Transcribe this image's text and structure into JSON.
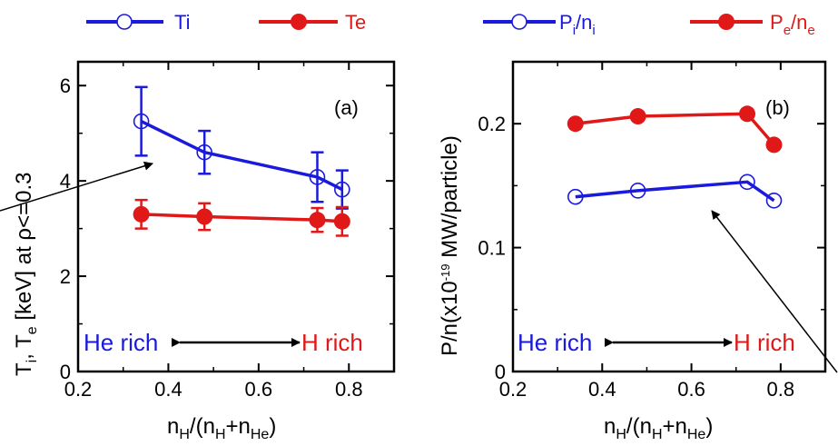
{
  "colors": {
    "blue": "#1a1adc",
    "red": "#e01818",
    "black": "#000000"
  },
  "legend": {
    "ti": "Ti",
    "te": "Te",
    "pi_main": "P",
    "pi_sub": "i",
    "pi_slash": "/n",
    "pi_sub2": "i",
    "pe_main": "P",
    "pe_sub": "e",
    "pe_slash": "/n",
    "pe_sub2": "e"
  },
  "chart_data": [
    {
      "type": "line",
      "panel_label": "(a)",
      "ylabel": {
        "p1": "T",
        "s1": "i",
        "p2": ", T",
        "s2": "e",
        "p3": " [keV] at  ",
        "rho": "ρ",
        "p4": "<=0.3"
      },
      "xlabel": {
        "p1": "n",
        "s1": "H",
        "p2": "/(n",
        "s2": "H",
        "p3": "+n",
        "s3": "He",
        "p4": ")"
      },
      "xlim": [
        0.2,
        0.9
      ],
      "ylim": [
        0,
        6.5
      ],
      "xticks": [
        "0.2",
        "0.4",
        "0.6",
        "0.8"
      ],
      "yticks": [
        "0",
        "2",
        "4",
        "6"
      ],
      "series": [
        {
          "name": "Ti",
          "color": "blue",
          "marker": "open-circle",
          "x": [
            0.34,
            0.48,
            0.73,
            0.785
          ],
          "y": [
            5.25,
            4.6,
            4.08,
            3.82
          ],
          "err": [
            0.72,
            0.45,
            0.52,
            0.4
          ]
        },
        {
          "name": "Te",
          "color": "red",
          "marker": "filled-circle",
          "x": [
            0.34,
            0.48,
            0.73,
            0.785
          ],
          "y": [
            3.3,
            3.25,
            3.18,
            3.15
          ],
          "err": [
            0.3,
            0.28,
            0.25,
            0.3
          ]
        }
      ],
      "annotations": {
        "left": "He rich",
        "right": "H rich"
      }
    },
    {
      "type": "line",
      "panel_label": "(b)",
      "ylabel": {
        "p1": "P/n(x10",
        "sup": "-19",
        "p2": " MW/particle)"
      },
      "xlabel": {
        "p1": "n",
        "s1": "H",
        "p2": "/(n",
        "s2": "H",
        "p3": "+n",
        "s3": "He",
        "p4": ")"
      },
      "xlim": [
        0.2,
        0.9
      ],
      "ylim": [
        0,
        0.25
      ],
      "xticks": [
        "0.2",
        "0.4",
        "0.6",
        "0.8"
      ],
      "yticks": [
        "0",
        "0.1",
        "0.2"
      ],
      "series": [
        {
          "name": "Pi/ni",
          "color": "blue",
          "marker": "open-circle",
          "x": [
            0.34,
            0.48,
            0.725,
            0.785
          ],
          "y": [
            0.141,
            0.146,
            0.153,
            0.138
          ]
        },
        {
          "name": "Pe/ne",
          "color": "red",
          "marker": "filled-circle",
          "x": [
            0.34,
            0.48,
            0.725,
            0.785
          ],
          "y": [
            0.2,
            0.206,
            0.208,
            0.183
          ]
        }
      ],
      "annotations": {
        "left": "He rich",
        "right": "H rich"
      }
    }
  ]
}
